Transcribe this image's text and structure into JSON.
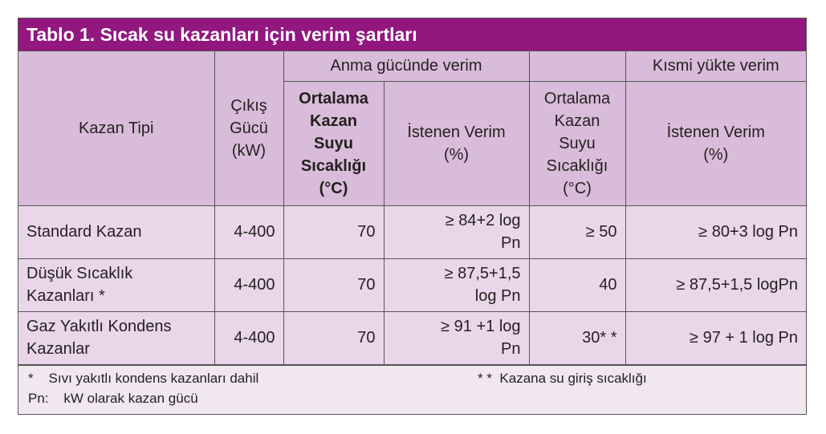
{
  "title": "Tablo 1. Sıcak su kazanları için verim şartları",
  "header": {
    "kazan_tipi": "Kazan Tipi",
    "cikis_gucu": [
      "Çıkış",
      "Gücü",
      "(kW)"
    ],
    "anma": "Anma gücünde verim",
    "kismi": "Kısmi yükte verim",
    "ort_bold": [
      "Ortalama",
      "Kazan",
      "Suyu",
      "Sıcaklığı",
      "(°C)"
    ],
    "istenen1": [
      "İstenen Verim",
      "(%)"
    ],
    "ort": [
      "Ortalama",
      "Kazan",
      "Suyu",
      "Sıcaklığı",
      "(°C)"
    ],
    "istenen2": [
      "İstenen Verim",
      "(%)"
    ]
  },
  "rows": [
    {
      "tip": [
        "Standard Kazan"
      ],
      "guc": "4-400",
      "t1": "70",
      "v1": [
        "≥ 84+2  log",
        "Pn"
      ],
      "t2": "≥ 50",
      "v2": "≥ 80+3  log Pn"
    },
    {
      "tip": [
        "Düşük Sıcaklık",
        "Kazanları *"
      ],
      "guc": "4-400",
      "t1": "70",
      "v1": [
        "≥ 87,5+1,5",
        "log Pn"
      ],
      "t2": "40",
      "v2": "≥ 87,5+1,5 logPn"
    },
    {
      "tip": [
        "Gaz Yakıtlı Kondens",
        "Kazanlar"
      ],
      "guc": "4-400",
      "t1": "70",
      "v1": [
        "≥ 91  +1 log",
        "Pn"
      ],
      "t2": "30* *",
      "v2": "≥   97 + 1 log Pn"
    }
  ],
  "footer": {
    "note1": "*    Sıvı yakıtlı kondens kazanları dahil",
    "note2": "* *  Kazana su giriş sıcaklığı",
    "note3": "Pn:    kW olarak kazan gücü"
  }
}
